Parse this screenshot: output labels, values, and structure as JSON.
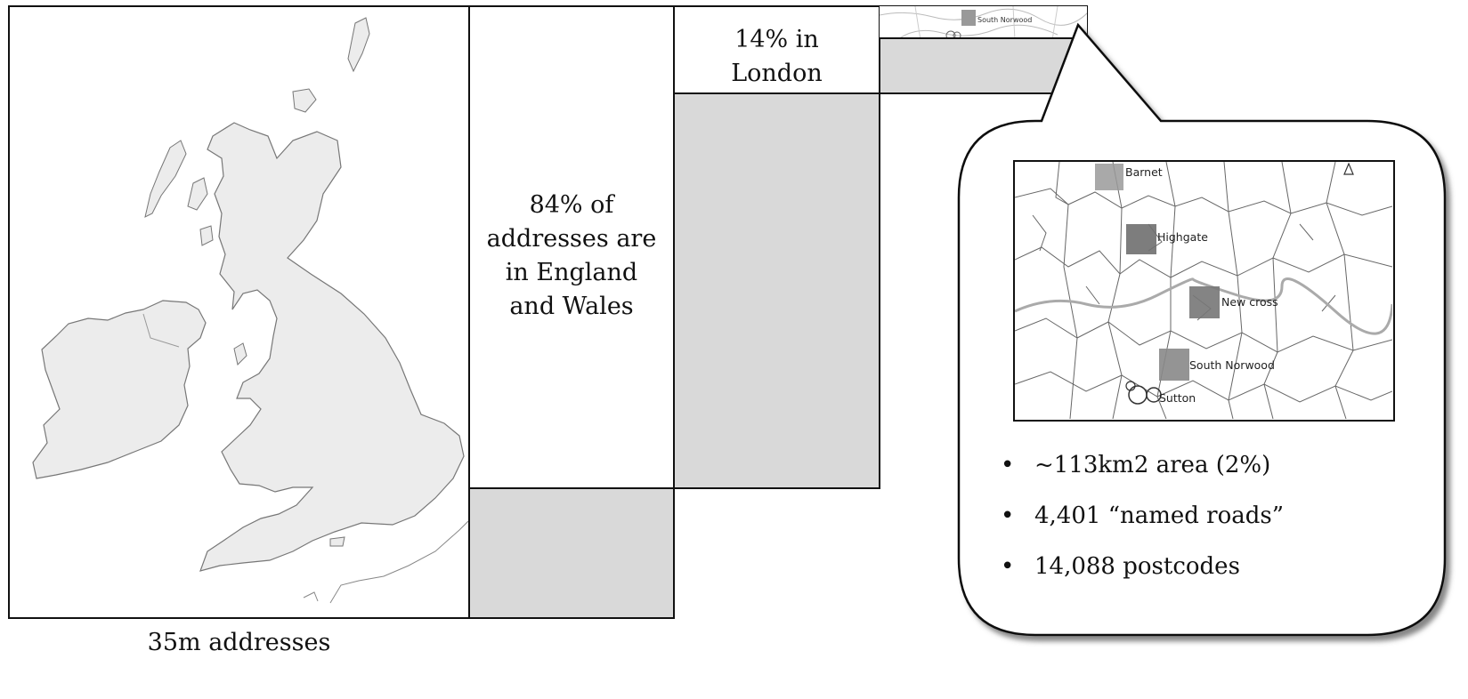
{
  "uk_panel": {
    "caption": "35m addresses"
  },
  "england_wales_panel": {
    "text": "84% of addresses are in England and Wales",
    "share_fraction": 0.84
  },
  "london_panel": {
    "text": "14% in London",
    "share_fraction": 0.14
  },
  "callout": {
    "map_places": [
      "Barnet",
      "Highgate",
      "New cross",
      "South Norwood",
      "Sutton"
    ],
    "thumbnail_place": "South Norwood",
    "bullets": [
      "~113km2 area (2%)",
      "4,401 “named roads”",
      "14,088 postcodes"
    ]
  },
  "colors": {
    "land": "#ececec",
    "panel_fill": "#d9d9d9",
    "outline": "#111111"
  }
}
